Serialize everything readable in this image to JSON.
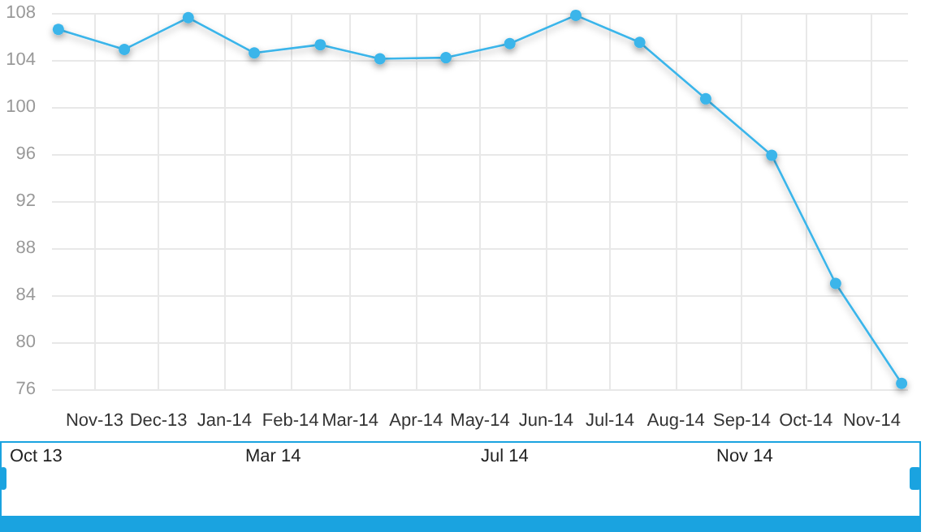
{
  "chart_data": {
    "type": "line",
    "x": [
      "2013-10-15",
      "2013-11-15",
      "2013-12-15",
      "2014-01-15",
      "2014-02-15",
      "2014-03-15",
      "2014-04-15",
      "2014-05-15",
      "2014-06-15",
      "2014-07-15",
      "2014-08-15",
      "2014-09-15",
      "2014-10-15",
      "2014-11-15"
    ],
    "series": [
      {
        "color": "#3bb5ea",
        "values": [
          106.6,
          104.9,
          107.6,
          104.6,
          105.3,
          104.1,
          104.2,
          105.4,
          107.8,
          105.5,
          100.7,
          95.9,
          85.0,
          76.5
        ]
      }
    ],
    "xlim": [
      "2013-10-12",
      "2014-11-18"
    ],
    "xticks": [
      {
        "value": "2013-11-01",
        "label": "Nov-13"
      },
      {
        "value": "2013-12-01",
        "label": "Dec-13"
      },
      {
        "value": "2014-01-01",
        "label": "Jan-14"
      },
      {
        "value": "2014-02-01",
        "label": "Feb-14"
      },
      {
        "value": "2014-03-01",
        "label": "Mar-14"
      },
      {
        "value": "2014-04-01",
        "label": "Apr-14"
      },
      {
        "value": "2014-05-01",
        "label": "May-14"
      },
      {
        "value": "2014-06-01",
        "label": "Jun-14"
      },
      {
        "value": "2014-07-01",
        "label": "Jul-14"
      },
      {
        "value": "2014-08-01",
        "label": "Aug-14"
      },
      {
        "value": "2014-09-01",
        "label": "Sep-14"
      },
      {
        "value": "2014-10-01",
        "label": "Oct-14"
      },
      {
        "value": "2014-11-01",
        "label": "Nov-14"
      }
    ],
    "ylim": [
      76,
      108
    ],
    "yticks": [
      76,
      80,
      84,
      88,
      92,
      96,
      100,
      104,
      108
    ],
    "annotations": [
      "Oct 13",
      "Mar 14",
      "Jul 14",
      "Nov 14"
    ],
    "grid": true,
    "marker": "circle",
    "line_style": "solid"
  }
}
